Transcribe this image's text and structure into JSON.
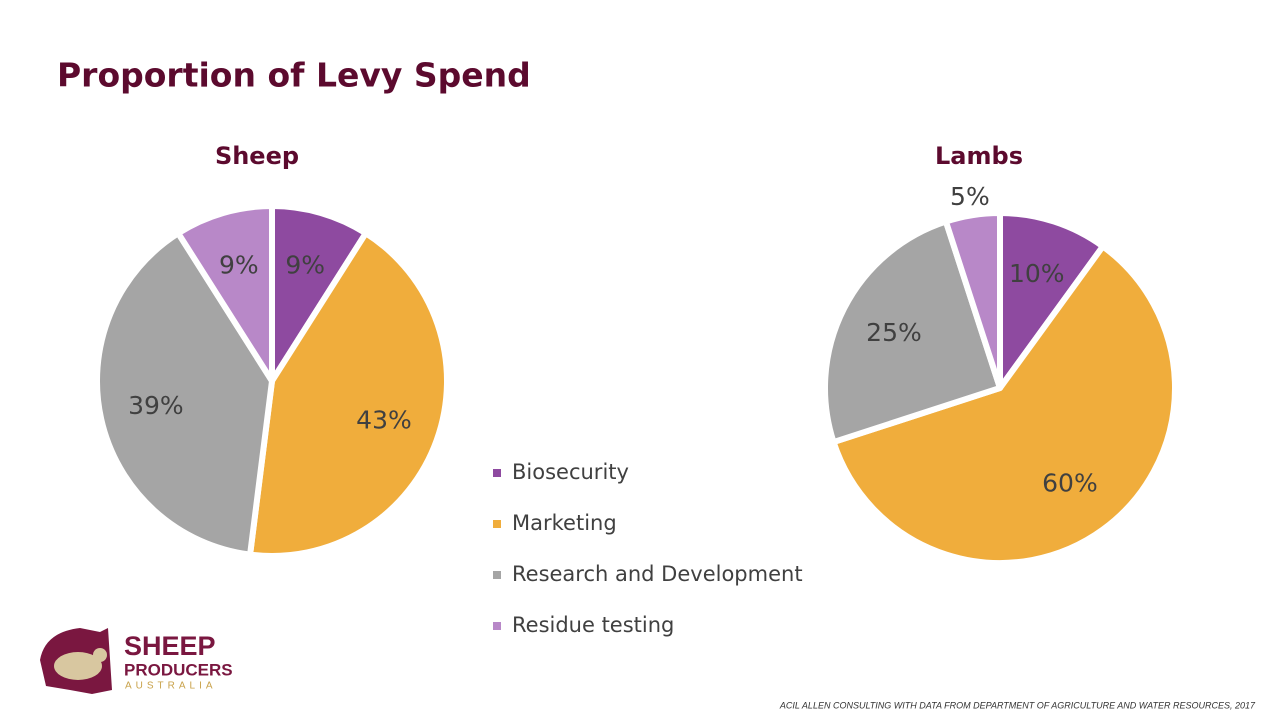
{
  "title": "Proportion of Levy Spend",
  "logo": {
    "line1": "SHEEP",
    "line2": "PRODUCERS",
    "line3": "AUSTRALIA"
  },
  "source": "ACIL ALLEN CONSULTING WITH DATA FROM DEPARTMENT OF AGRICULTURE AND WATER RESOURCES, 2017",
  "chart_data": [
    {
      "type": "pie",
      "title": "Sheep",
      "categories": [
        "Biosecurity",
        "Marketing",
        "Research and Development",
        "Residue testing"
      ],
      "values": [
        9,
        43,
        39,
        9
      ],
      "value_labels": [
        "9%",
        "43%",
        "39%",
        "9%"
      ],
      "colors": [
        "#8e4aa0",
        "#f0ad3c",
        "#a5a5a5",
        "#b888c8"
      ]
    },
    {
      "type": "pie",
      "title": "Lambs",
      "categories": [
        "Biosecurity",
        "Marketing",
        "Research and Development",
        "Residue testing"
      ],
      "values": [
        10,
        60,
        25,
        5
      ],
      "value_labels": [
        "10%",
        "60%",
        "25%",
        "5%"
      ],
      "colors": [
        "#8e4aa0",
        "#f0ad3c",
        "#a5a5a5",
        "#b888c8"
      ]
    }
  ]
}
